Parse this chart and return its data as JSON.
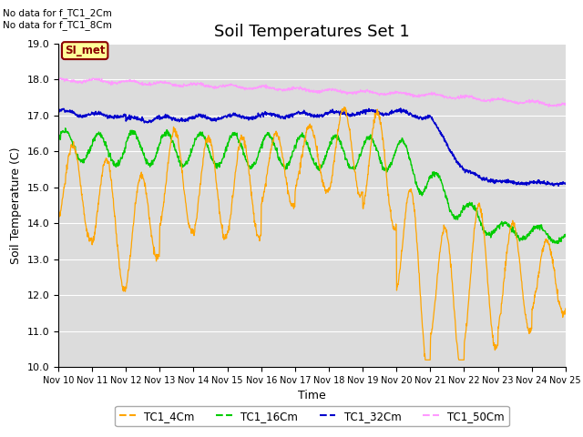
{
  "title": "Soil Temperatures Set 1",
  "xlabel": "Time",
  "ylabel": "Soil Temperature (C)",
  "ylim": [
    10.0,
    19.0
  ],
  "yticks": [
    10.0,
    11.0,
    12.0,
    13.0,
    14.0,
    15.0,
    16.0,
    17.0,
    18.0,
    19.0
  ],
  "xtick_labels": [
    "Nov 10",
    "Nov 11",
    "Nov 12",
    "Nov 13",
    "Nov 14",
    "Nov 15",
    "Nov 16",
    "Nov 17",
    "Nov 18",
    "Nov 19",
    "Nov 20",
    "Nov 21",
    "Nov 22",
    "Nov 23",
    "Nov 24",
    "Nov 25"
  ],
  "annotations": [
    "No data for f_TC1_2Cm",
    "No data for f_TC1_8Cm"
  ],
  "legend_label": "SI_met",
  "colors": {
    "TC1_4Cm": "#FFA500",
    "TC1_16Cm": "#00CC00",
    "TC1_32Cm": "#0000CC",
    "TC1_50Cm": "#FF99FF"
  },
  "plot_bg_color": "#DCDCDC",
  "title_fontsize": 13,
  "axis_fontsize": 9,
  "tick_fontsize": 8,
  "legend_box_color": "#FFFF99",
  "legend_box_edge": "#8B0000"
}
